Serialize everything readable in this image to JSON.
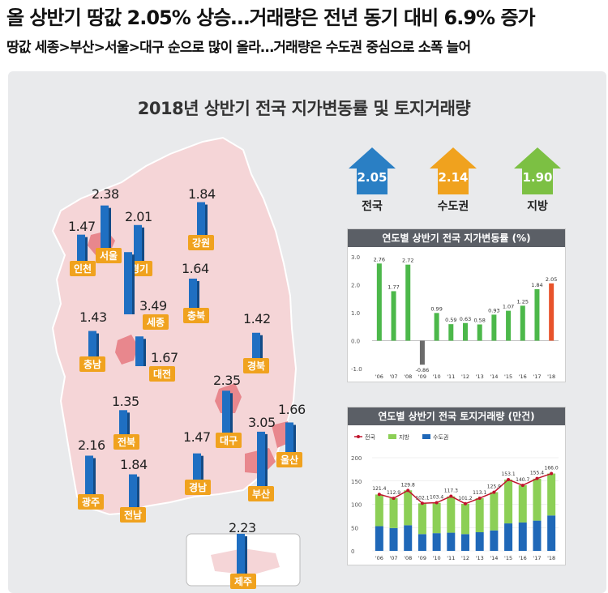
{
  "headline": "올 상반기 땅값 2.05% 상승…거래량은 전년 동기 대비 6.9% 증가",
  "subheadline": "땅값 세종>부산>서울>대구 순으로 많이 올라…거래량은 수도권 중심으로 소폭 늘어",
  "title": "2018년 상반기 전국 지가변동률 및 토지거래량",
  "summary": [
    {
      "label": "전국",
      "value": "2.05",
      "color": "#2a7fc4"
    },
    {
      "label": "수도권",
      "value": "2.14",
      "color": "#f0a21e"
    },
    {
      "label": "지방",
      "value": "1.90",
      "color": "#7cc043"
    }
  ],
  "regions": [
    {
      "name": "인천",
      "value": "1.47"
    },
    {
      "name": "서울",
      "value": "2.38"
    },
    {
      "name": "경기",
      "value": "2.01"
    },
    {
      "name": "강원",
      "value": "1.84"
    },
    {
      "name": "충북",
      "value": "1.64"
    },
    {
      "name": "세종",
      "value": "3.49"
    },
    {
      "name": "충남",
      "value": "1.43"
    },
    {
      "name": "대전",
      "value": "1.67"
    },
    {
      "name": "경북",
      "value": "1.42"
    },
    {
      "name": "대구",
      "value": "2.35"
    },
    {
      "name": "울산",
      "value": "1.66"
    },
    {
      "name": "전북",
      "value": "1.35"
    },
    {
      "name": "경남",
      "value": "1.47"
    },
    {
      "name": "부산",
      "value": "3.05"
    },
    {
      "name": "광주",
      "value": "2.16"
    },
    {
      "name": "전남",
      "value": "1.84"
    },
    {
      "name": "제주",
      "value": "2.23"
    }
  ],
  "chart_data": [
    {
      "type": "bar",
      "title": "연도별 상반기 전국 지가변동률 (%)",
      "categories": [
        "'06",
        "'07",
        "'08",
        "'09",
        "'10",
        "'11",
        "'12",
        "'13",
        "'14",
        "'15",
        "'16",
        "'17",
        "'18"
      ],
      "values": [
        2.76,
        1.77,
        2.72,
        -0.86,
        0.99,
        0.59,
        0.63,
        0.58,
        0.93,
        1.07,
        1.25,
        1.84,
        2.05
      ],
      "ylim": [
        -1.0,
        3.0
      ],
      "yticks": [
        "3.0",
        "2.0",
        "1.0",
        "0.0",
        "-1.0"
      ],
      "colors": {
        "default": "#4cb84a",
        "negative": "#6b6b6b",
        "current": "#e8532b"
      }
    },
    {
      "type": "bar",
      "title": "연도별 상반기 전국 토지거래량 (만건)",
      "categories": [
        "'06",
        "'07",
        "'08",
        "'09",
        "'10",
        "'11",
        "'12",
        "'13",
        "'14",
        "'15",
        "'16",
        "'17",
        "'18"
      ],
      "series": [
        {
          "name": "전국",
          "type": "line",
          "values": [
            121.4,
            112.9,
            129.8,
            102.1,
            103.4,
            117.3,
            101.2,
            113.1,
            125.9,
            153.1,
            140.7,
            155.4,
            166.0
          ],
          "color": "#c0142c"
        },
        {
          "name": "지방",
          "type": "bar",
          "values": [
            68,
            64,
            75,
            66,
            65,
            78,
            65,
            73,
            82,
            94,
            80,
            90,
            90
          ],
          "color": "#8ccf56"
        },
        {
          "name": "수도권",
          "type": "bar",
          "values": [
            53,
            49,
            55,
            36,
            38,
            39,
            36,
            40,
            44,
            59,
            61,
            65,
            76
          ],
          "color": "#1f68b8"
        }
      ],
      "ylim": [
        0,
        200
      ],
      "yticks": [
        "200",
        "150",
        "100",
        "50",
        "0"
      ]
    }
  ]
}
